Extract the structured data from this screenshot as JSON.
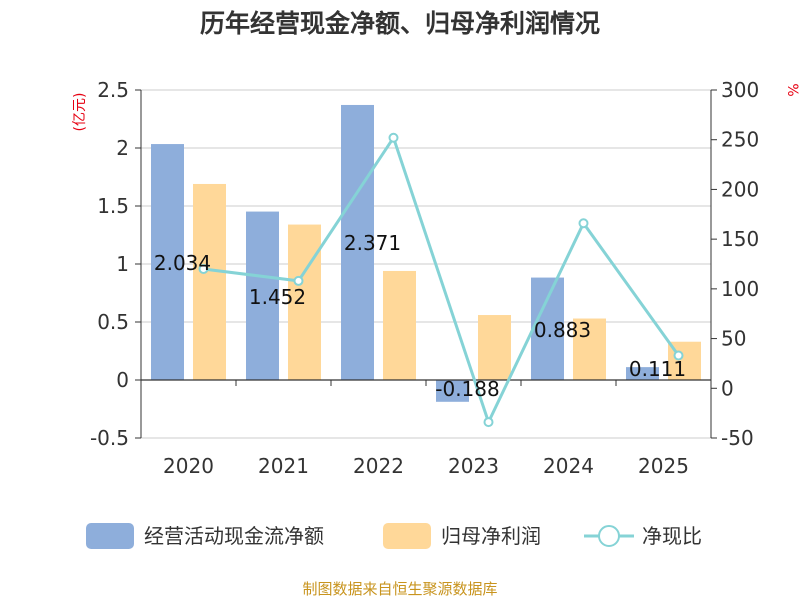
{
  "chart_data": {
    "type": "bar",
    "title": "历年经营现金净额、归母净利润情况",
    "categories": [
      "2020",
      "2021",
      "2022",
      "2023",
      "2024",
      "2025"
    ],
    "series": [
      {
        "name": "经营活动现金流净额",
        "type": "bar",
        "axis": "left",
        "values": [
          2.034,
          1.452,
          2.371,
          -0.188,
          0.883,
          0.111
        ],
        "labels": [
          "2.034",
          "1.452",
          "2.371",
          "-0.188",
          "0.883",
          "0.111"
        ],
        "color": "#8eaedb"
      },
      {
        "name": "归母净利润",
        "type": "bar",
        "axis": "left",
        "values": [
          1.69,
          1.34,
          0.94,
          0.56,
          0.53,
          0.33
        ],
        "color": "#ffd899"
      },
      {
        "name": "净现比",
        "type": "line",
        "axis": "right",
        "values": [
          120,
          108,
          252,
          -34,
          166,
          33
        ],
        "color": "#85d3d6"
      }
    ],
    "left_axis": {
      "unit": "(亿元)",
      "ylim": [
        -0.5,
        2.5
      ],
      "ticks": [
        "-0.5",
        "0",
        "0.5",
        "1",
        "1.5",
        "2",
        "2.5"
      ]
    },
    "right_axis": {
      "unit": "%",
      "ylim": [
        -50,
        300
      ],
      "ticks": [
        "-50",
        "0",
        "50",
        "100",
        "150",
        "200",
        "250",
        "300"
      ]
    },
    "grid": true,
    "legend_position": "bottom"
  },
  "source": "制图数据来自恒生聚源数据库",
  "colors": {
    "title": "#333333",
    "unit": "#e60012",
    "grid": "#cccccc",
    "source": "#c8941e"
  }
}
